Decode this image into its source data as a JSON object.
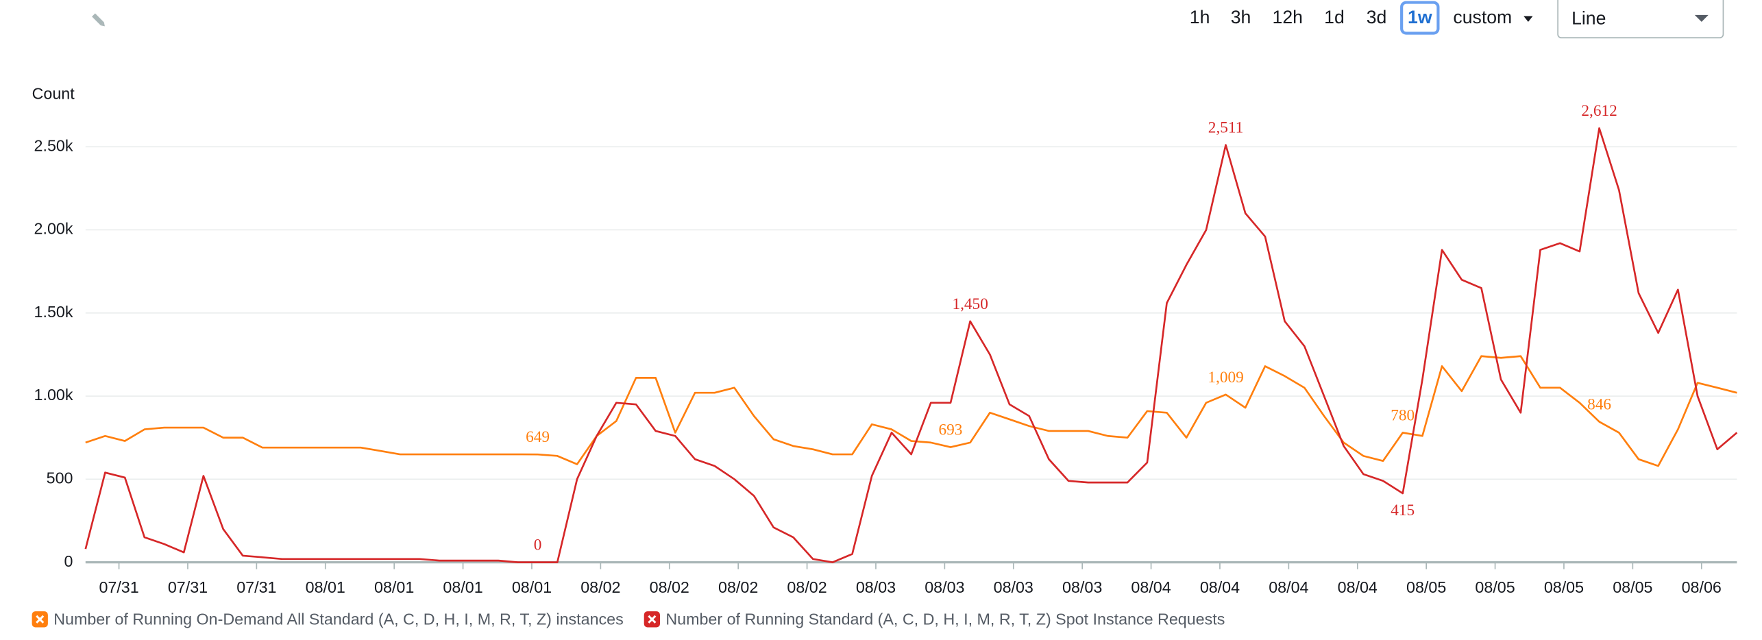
{
  "toolbar": {
    "ranges": [
      "1h",
      "3h",
      "12h",
      "1d",
      "3d",
      "1w"
    ],
    "selected_range": "1w",
    "custom": "custom",
    "view": "Line"
  },
  "chart_data": {
    "type": "line",
    "ylabel": "Count",
    "x": [
      0,
      2,
      4,
      6,
      8,
      10,
      12,
      14,
      16,
      18,
      20,
      22,
      24,
      26,
      28,
      30,
      32,
      34,
      36,
      38,
      40,
      42,
      44,
      46,
      48,
      50,
      52,
      54,
      56,
      58,
      60,
      62,
      64,
      66,
      68,
      70,
      72,
      74,
      76,
      78,
      80,
      82,
      84,
      86,
      88,
      90,
      92,
      94,
      96,
      98,
      100,
      102,
      104,
      106,
      108,
      110,
      112,
      114,
      116,
      118,
      120,
      122,
      124,
      126,
      128,
      130,
      132,
      134,
      136,
      138,
      140,
      142,
      144,
      146,
      148,
      150,
      152,
      154,
      156,
      158,
      160,
      162,
      164,
      166,
      168
    ],
    "xlim": [
      0,
      168
    ],
    "xticks": [
      {
        "value": 3.4,
        "label": "07/31"
      },
      {
        "value": 10.4,
        "label": "07/31"
      },
      {
        "value": 17.4,
        "label": "07/31"
      },
      {
        "value": 24.4,
        "label": "08/01"
      },
      {
        "value": 31.4,
        "label": "08/01"
      },
      {
        "value": 38.4,
        "label": "08/01"
      },
      {
        "value": 45.4,
        "label": "08/01"
      },
      {
        "value": 52.4,
        "label": "08/02"
      },
      {
        "value": 59.4,
        "label": "08/02"
      },
      {
        "value": 66.4,
        "label": "08/02"
      },
      {
        "value": 73.4,
        "label": "08/02"
      },
      {
        "value": 80.4,
        "label": "08/03"
      },
      {
        "value": 87.4,
        "label": "08/03"
      },
      {
        "value": 94.4,
        "label": "08/03"
      },
      {
        "value": 101.4,
        "label": "08/03"
      },
      {
        "value": 108.4,
        "label": "08/04"
      },
      {
        "value": 115.4,
        "label": "08/04"
      },
      {
        "value": 122.4,
        "label": "08/04"
      },
      {
        "value": 129.4,
        "label": "08/04"
      },
      {
        "value": 136.4,
        "label": "08/05"
      },
      {
        "value": 143.4,
        "label": "08/05"
      },
      {
        "value": 150.4,
        "label": "08/05"
      },
      {
        "value": 157.4,
        "label": "08/05"
      },
      {
        "value": 164.4,
        "label": "08/06"
      }
    ],
    "ylim": [
      0,
      2600
    ],
    "yticks": [
      0,
      500,
      {
        "value": 1000,
        "label": "1.00k"
      },
      {
        "value": 1500,
        "label": "1.50k"
      },
      {
        "value": 2000,
        "label": "2.00k"
      },
      {
        "value": 2500,
        "label": "2.50k"
      }
    ],
    "grid": true,
    "legend": "bottom-left",
    "series": [
      {
        "name": "Number of Running On-Demand All Standard (A, C, D, H, I, M, R, T, Z) instances",
        "color": "#ff7f0e",
        "values": [
          720,
          760,
          730,
          800,
          810,
          810,
          810,
          750,
          750,
          690,
          690,
          690,
          690,
          690,
          690,
          670,
          650,
          650,
          650,
          650,
          650,
          650,
          650,
          649,
          640,
          590,
          760,
          850,
          1110,
          1110,
          780,
          1020,
          1020,
          1050,
          880,
          740,
          700,
          680,
          650,
          650,
          830,
          800,
          730,
          720,
          693,
          720,
          900,
          860,
          820,
          790,
          790,
          790,
          760,
          750,
          910,
          900,
          750,
          960,
          1009,
          930,
          1180,
          1120,
          1050,
          880,
          720,
          640,
          610,
          780,
          760,
          1180,
          1030,
          1240,
          1230,
          1240,
          1050,
          1050,
          960,
          846,
          780,
          620,
          580,
          800,
          1080,
          1050,
          1020
        ],
        "value_labels": [
          null,
          null,
          null,
          null,
          null,
          null,
          null,
          null,
          null,
          null,
          null,
          null,
          null,
          null,
          null,
          null,
          null,
          null,
          null,
          null,
          null,
          null,
          null,
          "649",
          null,
          null,
          null,
          null,
          null,
          null,
          null,
          null,
          null,
          null,
          null,
          null,
          null,
          null,
          null,
          null,
          null,
          null,
          null,
          null,
          "693",
          null,
          null,
          null,
          null,
          null,
          null,
          null,
          null,
          null,
          null,
          null,
          null,
          null,
          "1,009",
          null,
          null,
          null,
          null,
          null,
          null,
          null,
          null,
          "780",
          null,
          null,
          null,
          null,
          null,
          null,
          null,
          null,
          null,
          "846",
          null,
          null,
          null,
          null,
          null,
          null,
          null
        ]
      },
      {
        "name": "Number of Running Standard (A, C, D, H, I, M, R, T, Z) Spot Instance Requests",
        "color": "#d62728",
        "values": [
          80,
          540,
          510,
          150,
          110,
          60,
          520,
          200,
          40,
          30,
          20,
          20,
          20,
          20,
          20,
          20,
          20,
          20,
          10,
          10,
          10,
          10,
          0,
          0,
          0,
          500,
          760,
          960,
          950,
          790,
          760,
          620,
          580,
          500,
          400,
          210,
          150,
          20,
          0,
          50,
          520,
          780,
          650,
          960,
          960,
          1450,
          1250,
          950,
          880,
          620,
          490,
          480,
          480,
          480,
          600,
          1560,
          1790,
          2000,
          2511,
          2100,
          1960,
          1450,
          1300,
          1000,
          700,
          530,
          490,
          415,
          1100,
          1880,
          1700,
          1650,
          1100,
          900,
          1880,
          1920,
          1870,
          2612,
          2240,
          1620,
          1380,
          1640,
          1000,
          680,
          780
        ],
        "value_labels": [
          null,
          null,
          null,
          null,
          null,
          null,
          null,
          null,
          null,
          null,
          null,
          null,
          null,
          null,
          null,
          null,
          null,
          null,
          null,
          null,
          null,
          null,
          null,
          "0",
          null,
          null,
          null,
          null,
          null,
          null,
          null,
          null,
          null,
          null,
          null,
          null,
          null,
          null,
          null,
          null,
          null,
          null,
          null,
          null,
          null,
          "1,450",
          null,
          null,
          null,
          null,
          null,
          null,
          null,
          null,
          null,
          null,
          null,
          null,
          "2,511",
          null,
          null,
          null,
          null,
          null,
          null,
          null,
          null,
          "415",
          null,
          null,
          null,
          null,
          null,
          null,
          null,
          null,
          null,
          "2,612",
          null,
          null,
          null,
          null,
          null,
          null,
          null
        ]
      }
    ]
  }
}
